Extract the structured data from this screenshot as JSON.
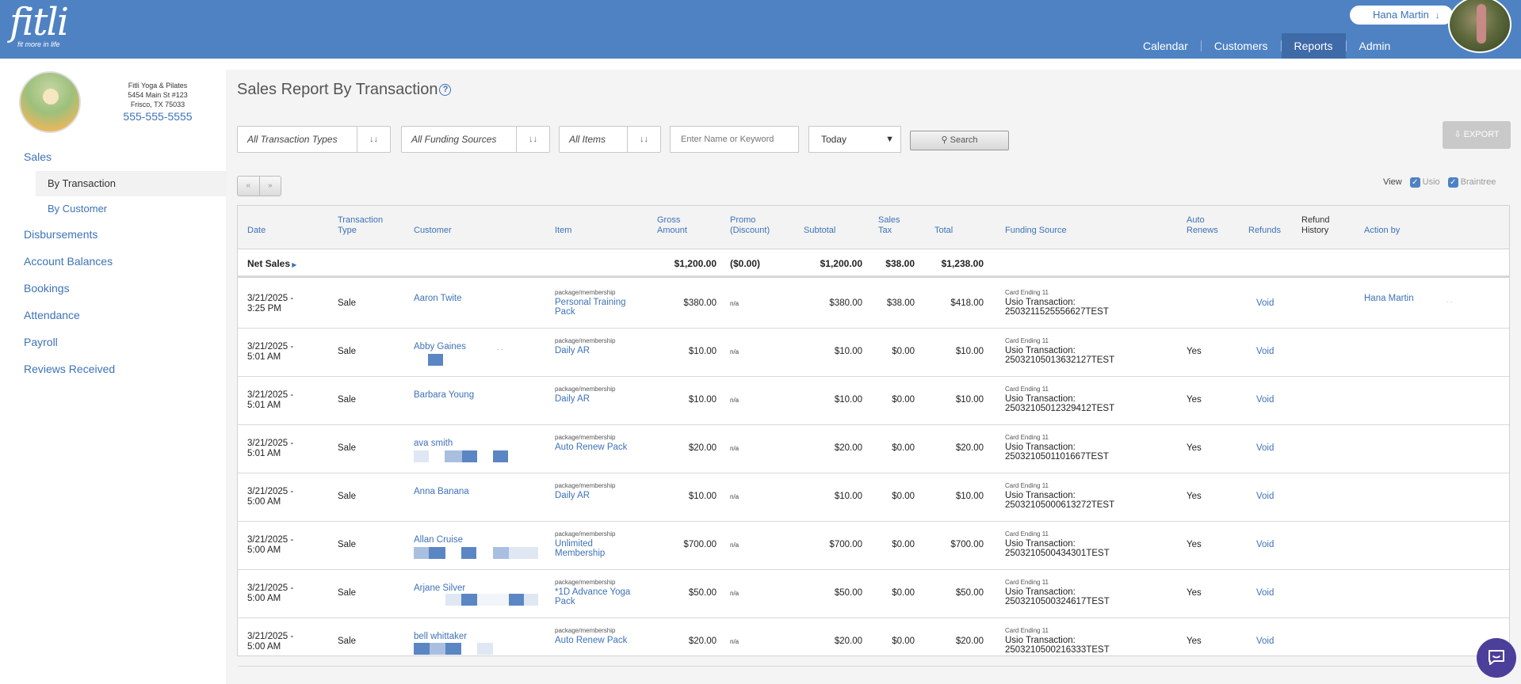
{
  "header": {
    "logo_text": "fitli",
    "logo_tagline": "fit more in life",
    "user_name": "Hana Martin",
    "nav": [
      "Calendar",
      "Customers",
      "Reports",
      "Admin"
    ]
  },
  "studio": {
    "name": "Fitli Yoga & Pilates",
    "address1": "5454 Main St #123",
    "address2": "Frisco, TX 75033",
    "phone": "555-555-5555"
  },
  "sidebar": {
    "sales": "Sales",
    "by_transaction": "By Transaction",
    "by_customer": "By Customer",
    "disbursements": "Disbursements",
    "account_balances": "Account Balances",
    "bookings": "Bookings",
    "attendance": "Attendance",
    "payroll": "Payroll",
    "reviews": "Reviews Received"
  },
  "page": {
    "title": "Sales Report By Transaction",
    "help": "?"
  },
  "filters": {
    "transaction_types": "All Transaction Types",
    "funding_sources": "All Funding Sources",
    "items": "All Items",
    "keyword_placeholder": "Enter Name or Keyword",
    "date_range": "Today",
    "search": "Search",
    "export": "EXPORT"
  },
  "pager": {
    "prev": "«",
    "next": "»"
  },
  "view": {
    "label": "View",
    "usio": "Usio",
    "braintree": "Braintree"
  },
  "table": {
    "headers": {
      "date": "Date",
      "type1": "Transaction",
      "type2": "Type",
      "customer": "Customer",
      "item": "Item",
      "gross1": "Gross",
      "gross2": "Amount",
      "promo1": "Promo",
      "promo2": "(Discount)",
      "subtotal": "Subtotal",
      "tax1": "Sales",
      "tax2": "Tax",
      "total": "Total",
      "funding": "Funding Source",
      "auto1": "Auto",
      "auto2": "Renews",
      "refunds": "Refunds",
      "refund_history1": "Refund",
      "refund_history2": "History",
      "action_by": "Action by"
    },
    "net_sales": {
      "label": "Net Sales",
      "gross": "$1,200.00",
      "promo": "($0.00)",
      "subtotal": "$1,200.00",
      "tax": "$38.00",
      "total": "$1,238.00"
    },
    "rows": [
      {
        "date1": "3/21/2025 -",
        "date2": "3:25 PM",
        "type": "Sale",
        "customer": "Aaron Twite",
        "item_type": "package/membership",
        "item": "Personal Training Pack",
        "gross": "$380.00",
        "promo": "n/a",
        "subtotal": "$380.00",
        "tax": "$38.00",
        "total": "$418.00",
        "card": "Card Ending 11",
        "usio": "Usio Transaction:",
        "txn": "250321152555662​7TEST",
        "auto": "",
        "refund": "Void",
        "action_by": "Hana Martin"
      },
      {
        "date1": "3/21/2025 -",
        "date2": "5:01 AM",
        "type": "Sale",
        "customer": "Abby Gaines",
        "item_type": "package/membership",
        "item": "Daily AR",
        "gross": "$10.00",
        "promo": "n/a",
        "subtotal": "$10.00",
        "tax": "$0.00",
        "total": "$10.00",
        "card": "Card Ending 11",
        "usio": "Usio Transaction:",
        "txn": "2503210501363212​7TEST",
        "auto": "Yes",
        "refund": "Void",
        "action_by": ""
      },
      {
        "date1": "3/21/2025 -",
        "date2": "5:01 AM",
        "type": "Sale",
        "customer": "Barbara Young",
        "item_type": "package/membership",
        "item": "Daily AR",
        "gross": "$10.00",
        "promo": "n/a",
        "subtotal": "$10.00",
        "tax": "$0.00",
        "total": "$10.00",
        "card": "Card Ending 11",
        "usio": "Usio Transaction:",
        "txn": "250321050123294​12TEST",
        "auto": "Yes",
        "refund": "Void",
        "action_by": ""
      },
      {
        "date1": "3/21/2025 -",
        "date2": "5:01 AM",
        "type": "Sale",
        "customer": "ava smith",
        "item_type": "package/membership",
        "item": "Auto Renew Pack",
        "gross": "$20.00",
        "promo": "n/a",
        "subtotal": "$20.00",
        "tax": "$0.00",
        "total": "$20.00",
        "card": "Card Ending 11",
        "usio": "Usio Transaction:",
        "txn": "2503210501101667TEST",
        "auto": "Yes",
        "refund": "Void",
        "action_by": ""
      },
      {
        "date1": "3/21/2025 -",
        "date2": "5:00 AM",
        "type": "Sale",
        "customer": "Anna Banana",
        "item_type": "package/membership",
        "item": "Daily AR",
        "gross": "$10.00",
        "promo": "n/a",
        "subtotal": "$10.00",
        "tax": "$0.00",
        "total": "$10.00",
        "card": "Card Ending 11",
        "usio": "Usio Transaction:",
        "txn": "2503210500061327​2TEST",
        "auto": "Yes",
        "refund": "Void",
        "action_by": ""
      },
      {
        "date1": "3/21/2025 -",
        "date2": "5:00 AM",
        "type": "Sale",
        "customer": "Allan Cruise",
        "item_type": "package/membership",
        "item": "Unlimited Membership",
        "gross": "$700.00",
        "promo": "n/a",
        "subtotal": "$700.00",
        "tax": "$0.00",
        "total": "$700.00",
        "card": "Card Ending 11",
        "usio": "Usio Transaction:",
        "txn": "2503210500434301TEST",
        "auto": "Yes",
        "refund": "Void",
        "action_by": ""
      },
      {
        "date1": "3/21/2025 -",
        "date2": "5:00 AM",
        "type": "Sale",
        "customer": "Arjane Silver",
        "item_type": "package/membership",
        "item": "*1D Advance Yoga Pack",
        "gross": "$50.00",
        "promo": "n/a",
        "subtotal": "$50.00",
        "tax": "$0.00",
        "total": "$50.00",
        "card": "Card Ending 11",
        "usio": "Usio Transaction:",
        "txn": "2503210500324617TEST",
        "auto": "Yes",
        "refund": "Void",
        "action_by": ""
      },
      {
        "date1": "3/21/2025 -",
        "date2": "5:00 AM",
        "type": "Sale",
        "customer": "bell whittaker",
        "item_type": "package/membership",
        "item": "Auto Renew Pack",
        "gross": "$20.00",
        "promo": "n/a",
        "subtotal": "$20.00",
        "tax": "$0.00",
        "total": "$20.00",
        "card": "Card Ending 11",
        "usio": "Usio Transaction:",
        "txn": "2503210500216333TEST",
        "auto": "Yes",
        "refund": "Void",
        "action_by": ""
      }
    ]
  },
  "colors": {
    "brand": "#4f82c3",
    "nav_active": "#3e6aa7",
    "link": "#3d72b8",
    "chat": "#4c3f9a"
  }
}
